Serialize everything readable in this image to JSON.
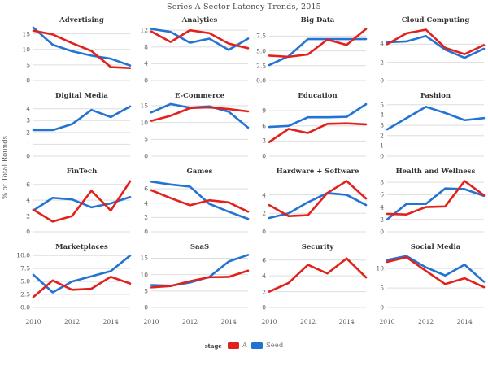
{
  "chart_data": {
    "type": "line",
    "title": "Series A Sector Latency Trends, 2015",
    "ylabel": "% of Total Rounds",
    "x": [
      2010,
      2011,
      2012,
      2013,
      2014,
      2015
    ],
    "xtick_labels": [
      "2010",
      "2012",
      "2014"
    ],
    "xtick_positions": [
      0,
      0.4,
      0.8
    ],
    "grid": true,
    "grid_color": "#dedede",
    "legend": {
      "label": "stage",
      "position": "bottom",
      "entries": [
        {
          "name": "A",
          "color": "#e3211c"
        },
        {
          "name": "Seed",
          "color": "#2273d2"
        }
      ]
    },
    "panels": [
      {
        "title": "Advertising",
        "ylim": [
          0,
          17.5
        ],
        "ytick_labels": [
          "0",
          "5",
          "10",
          "15"
        ],
        "series": [
          {
            "name": "A",
            "values": [
              16,
              14.8,
              12,
              9.5,
              4.3,
              4
            ]
          },
          {
            "name": "Seed",
            "values": [
              17,
              11.5,
              9.4,
              8,
              7,
              4.8
            ]
          }
        ]
      },
      {
        "title": "Analytics",
        "ylim": [
          0,
          13
        ],
        "ytick_labels": [
          "0",
          "4",
          "8",
          "12"
        ],
        "series": [
          {
            "name": "A",
            "values": [
              11.7,
              9.2,
              12,
              11.3,
              8.8,
              7.7
            ]
          },
          {
            "name": "Seed",
            "values": [
              12.3,
              11.6,
              9,
              10,
              7.3,
              10
            ]
          }
        ]
      },
      {
        "title": "Big Data",
        "ylim": [
          0,
          9.2
        ],
        "ytick_labels": [
          "0.0",
          "2.5",
          "5.0",
          "7.5"
        ],
        "series": [
          {
            "name": "A",
            "values": [
              4.2,
              4,
              4.4,
              6.9,
              6,
              8.7
            ]
          },
          {
            "name": "Seed",
            "values": [
              2.6,
              4.1,
              7,
              7,
              7,
              7
            ]
          }
        ]
      },
      {
        "title": "Cloud Computing",
        "ylim": [
          0,
          6
        ],
        "ytick_labels": [
          "0",
          "2",
          "4"
        ],
        "series": [
          {
            "name": "A",
            "values": [
              4,
              5.2,
              5.6,
              3.6,
              2.9,
              3.9
            ]
          },
          {
            "name": "Seed",
            "values": [
              4.2,
              4.3,
              4.9,
              3.4,
              2.5,
              3.5
            ]
          }
        ]
      },
      {
        "title": "Digital Media",
        "ylim": [
          0,
          4.6
        ],
        "ytick_labels": [
          "0",
          "1",
          "2",
          "3",
          "4"
        ],
        "series": [
          {
            "name": "Seed",
            "values": [
              2.2,
              2.2,
              2.7,
              3.9,
              3.3,
              4.2
            ]
          }
        ]
      },
      {
        "title": "E-Commerce",
        "ylim": [
          0,
          16.2
        ],
        "ytick_labels": [
          "0",
          "5",
          "10",
          "15"
        ],
        "series": [
          {
            "name": "A",
            "values": [
              10.5,
              12,
              14.3,
              14.5,
              14,
              13.3
            ]
          },
          {
            "name": "Seed",
            "values": [
              13,
              15.5,
              14.4,
              14.8,
              13.2,
              8.5
            ]
          }
        ]
      },
      {
        "title": "Education",
        "ylim": [
          0,
          10.8
        ],
        "ytick_labels": [
          "0",
          "3",
          "6",
          "9"
        ],
        "series": [
          {
            "name": "A",
            "values": [
              2.8,
              5.4,
              4.6,
              6.4,
              6.5,
              6.3
            ]
          },
          {
            "name": "Seed",
            "values": [
              5.8,
              6,
              7.7,
              7.7,
              7.8,
              10.3
            ]
          }
        ]
      },
      {
        "title": "Fashion",
        "ylim": [
          0,
          5.3
        ],
        "ytick_labels": [
          "0",
          "1",
          "2",
          "3",
          "4",
          "5"
        ],
        "series": [
          {
            "name": "Seed",
            "values": [
              2.6,
              3.7,
              4.8,
              4.2,
              3.5,
              3.7
            ]
          }
        ]
      },
      {
        "title": "FinTech",
        "ylim": [
          0,
          6.9
        ],
        "ytick_labels": [
          "0",
          "2",
          "4",
          "6"
        ],
        "series": [
          {
            "name": "A",
            "values": [
              2.8,
              1.3,
              2,
              5.2,
              2.7,
              6.4
            ]
          },
          {
            "name": "Seed",
            "values": [
              2.7,
              4.3,
              4.1,
              3.1,
              3.6,
              4.4
            ]
          }
        ]
      },
      {
        "title": "Games",
        "ylim": [
          0,
          7.6
        ],
        "ytick_labels": [
          "0",
          "2",
          "4",
          "6"
        ],
        "series": [
          {
            "name": "A",
            "values": [
              5.8,
              4.7,
              3.7,
              4.4,
              4.1,
              2.8
            ]
          },
          {
            "name": "Seed",
            "values": [
              7,
              6.6,
              6.3,
              3.9,
              2.8,
              1.8
            ]
          }
        ]
      },
      {
        "title": "Hardware + Software",
        "ylim": [
          0,
          5.9
        ],
        "ytick_labels": [
          "0",
          "2",
          "4"
        ],
        "series": [
          {
            "name": "A",
            "values": [
              2.9,
              1.7,
              1.8,
              4.2,
              5.5,
              3.6
            ]
          },
          {
            "name": "Seed",
            "values": [
              1.5,
              2,
              3.2,
              4.2,
              4,
              2.9
            ]
          }
        ]
      },
      {
        "title": "Health and Wellness",
        "ylim": [
          0,
          8.8
        ],
        "ytick_labels": [
          "0",
          "2",
          "4",
          "6",
          "8"
        ],
        "series": [
          {
            "name": "A",
            "values": [
              2.9,
              2.8,
              4,
              4.1,
              8.2,
              5.9
            ]
          },
          {
            "name": "Seed",
            "values": [
              2,
              4.5,
              4.5,
              7,
              6.9,
              5.8
            ]
          }
        ]
      },
      {
        "title": "Marketplaces",
        "ylim": [
          0,
          10.5
        ],
        "ytick_labels": [
          "0.0",
          "2.5",
          "5.0",
          "7.5",
          "10.0"
        ],
        "series": [
          {
            "name": "A",
            "values": [
              2,
              5.2,
              3.4,
              3.6,
              5.9,
              4.6
            ]
          },
          {
            "name": "Seed",
            "values": [
              6.3,
              2.9,
              5,
              6,
              7,
              10
            ]
          }
        ]
      },
      {
        "title": "SaaS",
        "ylim": [
          0,
          16.6
        ],
        "ytick_labels": [
          "0",
          "5",
          "10",
          "15"
        ],
        "series": [
          {
            "name": "A",
            "values": [
              6.1,
              6.5,
              8,
              9.2,
              9.3,
              11.2
            ]
          },
          {
            "name": "Seed",
            "values": [
              6.8,
              6.6,
              7.6,
              9.3,
              14,
              16
            ]
          }
        ]
      },
      {
        "title": "Security",
        "ylim": [
          0,
          6.9
        ],
        "ytick_labels": [
          "0",
          "2",
          "4",
          "6"
        ],
        "series": [
          {
            "name": "A",
            "values": [
              2,
              3.1,
              5.4,
              4.3,
              6.2,
              3.8
            ]
          }
        ]
      },
      {
        "title": "Social Media",
        "ylim": [
          0,
          14
        ],
        "ytick_labels": [
          "0",
          "5",
          "10"
        ],
        "series": [
          {
            "name": "A",
            "values": [
              11.7,
              12.9,
              9.4,
              6,
              7.5,
              5.2
            ]
          },
          {
            "name": "Seed",
            "values": [
              12.2,
              13.2,
              10.3,
              8.2,
              11,
              6.6
            ]
          }
        ]
      }
    ]
  }
}
